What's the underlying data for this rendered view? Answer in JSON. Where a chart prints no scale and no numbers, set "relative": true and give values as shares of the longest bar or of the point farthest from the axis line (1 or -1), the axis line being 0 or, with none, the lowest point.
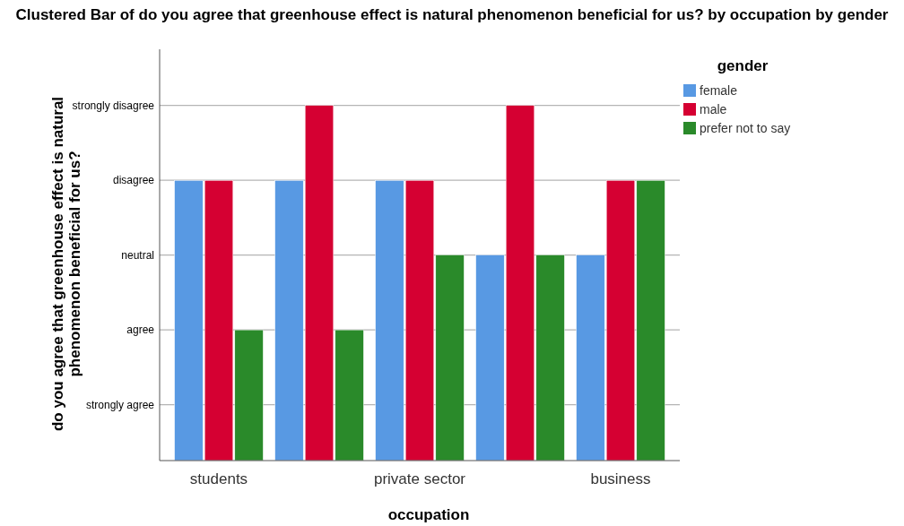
{
  "chart_data": {
    "type": "bar",
    "title": "Clustered Bar of do you agree that greenhouse effect is natural phenomenon beneficial for us? by occupation by gender",
    "xlabel": "occupation",
    "ylabel": "do you agree that greenhouse effect is natural phenomenon beneficial for us?",
    "legend_title": "gender",
    "categories": [
      "students",
      null,
      "private sector",
      null,
      "business"
    ],
    "relative": true,
    "series": [
      {
        "name": "female",
        "color": "#5899e3",
        "values": [
          0.789,
          0.789,
          0.789,
          0.579,
          0.579
        ]
      },
      {
        "name": "male",
        "color": "#d50032",
        "values": [
          0.789,
          1,
          0.789,
          1,
          0.789
        ]
      },
      {
        "name": "prefer not to say",
        "color": "#2a8a2a",
        "values": [
          0.368,
          0.368,
          0.579,
          0.579,
          0.789
        ]
      }
    ],
    "annotations": [
      "strongly agree",
      "agree",
      "neutral",
      "disagree",
      "strongly disagree"
    ],
    "grid": "y",
    "legend": "top right"
  }
}
